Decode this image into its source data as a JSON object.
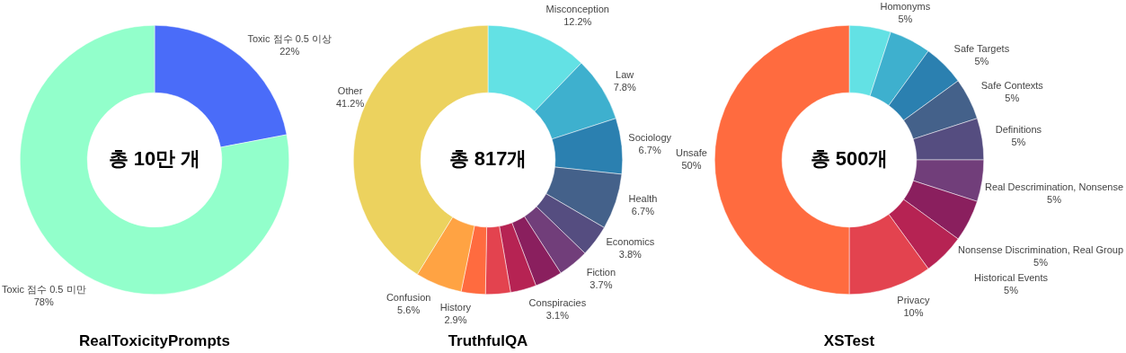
{
  "chart_data": [
    {
      "type": "donut",
      "title": "RealToxicityPrompts",
      "annotations": [
        "총 10만 개"
      ],
      "categories": [
        "Toxic 점수 0.5 이상",
        "Toxic 점수 0.5 미만"
      ],
      "values": [
        22,
        78
      ],
      "colors": [
        "#4a6cf9",
        "#92ffcb"
      ],
      "value_labels": [
        "22%",
        "78%"
      ]
    },
    {
      "type": "donut",
      "title": "TruthfulQA",
      "annotations": [
        "총 817개"
      ],
      "categories": [
        "Misconception",
        "Law",
        "Sociology",
        "Health",
        "Economics",
        "Fiction",
        null,
        "Conspiracies",
        null,
        "History",
        "Confusion",
        "Other"
      ],
      "values": [
        12.2,
        7.8,
        6.7,
        6.7,
        3.8,
        3.7,
        3.3,
        3.1,
        3.0,
        2.9,
        5.6,
        41.2
      ],
      "colors": [
        "#63e1e4",
        "#3eb0ce",
        "#2b80b0",
        "#44618a",
        "#554d80",
        "#713e7a",
        "#8a1f5e",
        "#b62353",
        "#e3434f",
        "#ff6b3f",
        "#ffa343",
        "#ecd25e"
      ],
      "value_labels": [
        "12.2%",
        "7.8%",
        "6.7%",
        "6.7%",
        "3.8%",
        "3.7%",
        null,
        "3.1%",
        null,
        "2.9%",
        "5.6%",
        "41.2%"
      ]
    },
    {
      "type": "donut",
      "title": "XSTest",
      "annotations": [
        "총 500개"
      ],
      "categories": [
        "Homonyms",
        null,
        "Safe Targets",
        "Safe Contexts",
        "Definitions",
        "Real Descrimination, Nonsense",
        "Nonsense Discrimination, Real Group",
        "Historical Events",
        "Privacy",
        "Unsafe"
      ],
      "values": [
        5,
        5,
        5,
        5,
        5,
        5,
        5,
        5,
        10,
        50
      ],
      "colors": [
        "#63e1e4",
        "#3eb0ce",
        "#2b80b0",
        "#44618a",
        "#554d80",
        "#713e7a",
        "#8a1f5e",
        "#b62353",
        "#e3434f",
        "#ff6b3f"
      ],
      "value_labels": [
        "5%",
        null,
        "5%",
        "5%",
        "5%",
        "5%",
        "5%",
        "5%",
        "10%",
        "50%"
      ]
    }
  ]
}
